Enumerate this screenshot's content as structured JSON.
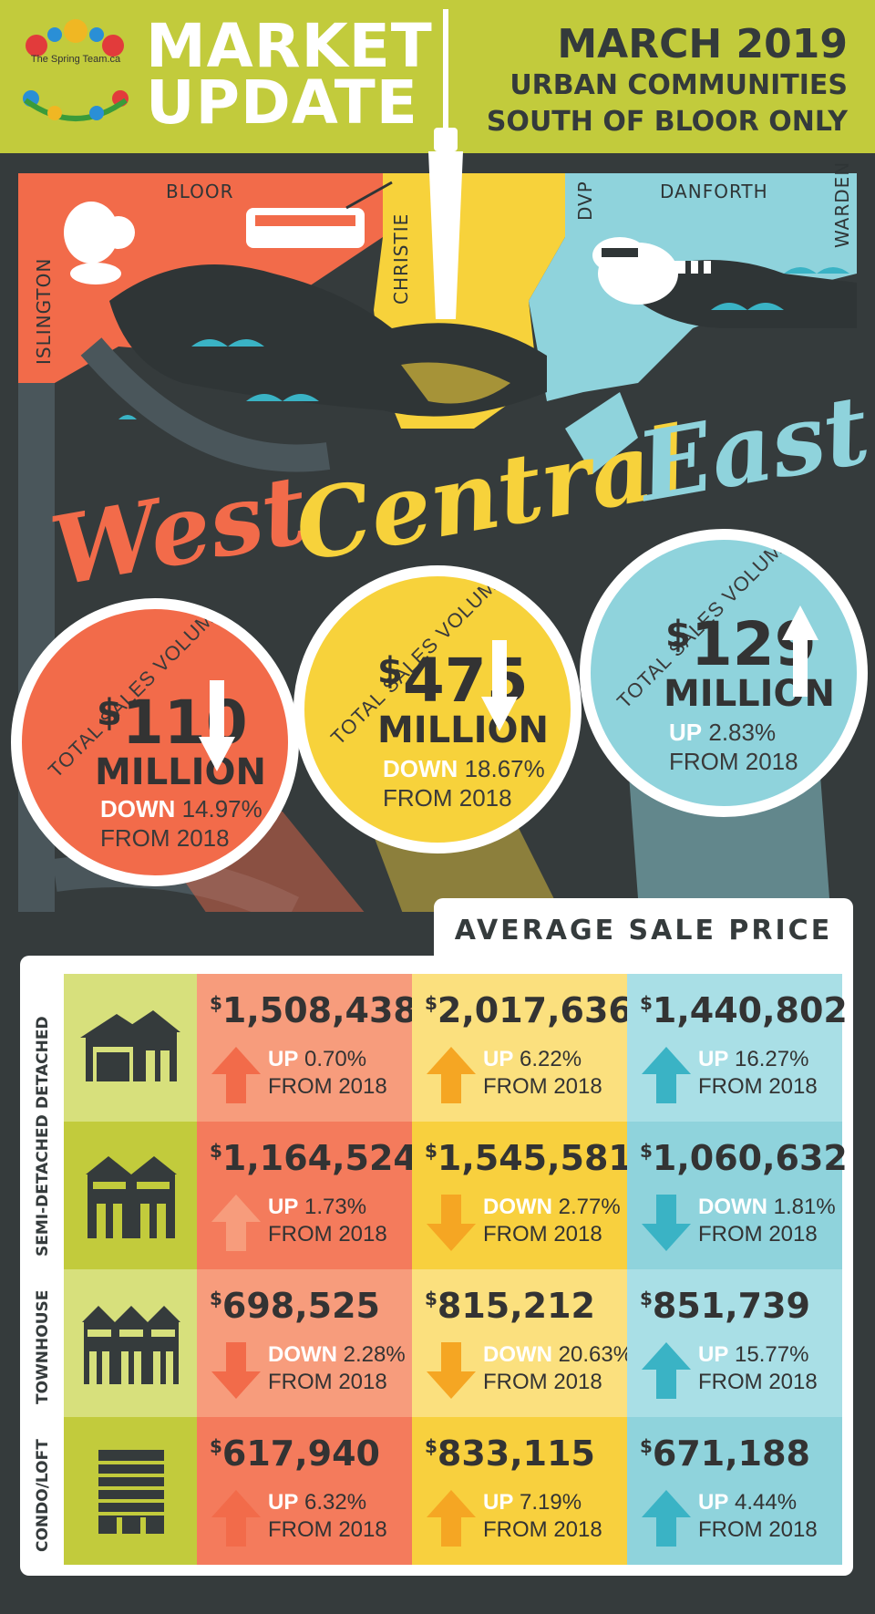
{
  "header": {
    "logo_text": "The Spring Team.ca",
    "title_line1": "MARKET",
    "title_line2": "UPDATE",
    "date": "MARCH 2019",
    "subtitle_line1": "URBAN COMMUNITIES",
    "subtitle_line2": "SOUTH OF BLOOR ONLY"
  },
  "map": {
    "streets": {
      "bloor": "BLOOR",
      "islington": "ISLINGTON",
      "christie": "CHRISTIE",
      "dvp": "DVP",
      "danforth": "DANFORTH",
      "warden": "WARDEN"
    },
    "colors": {
      "west": "#f26b4a",
      "central": "#f7d23b",
      "east": "#8fd3dc"
    }
  },
  "regions": [
    {
      "name": "West",
      "label": "TOTAL SALES VOLUME",
      "amount": "110",
      "unit": "MILLION",
      "direction": "DOWN",
      "change": "14.97%",
      "from": "FROM 2018"
    },
    {
      "name": "Central",
      "label": "TOTAL SALES VOLUME",
      "amount": "475",
      "unit": "MILLION",
      "direction": "DOWN",
      "change": "18.67%",
      "from": "FROM 2018"
    },
    {
      "name": "East",
      "label": "TOTAL SALES VOLUME",
      "amount": "129",
      "unit": "MILLION",
      "direction": "UP",
      "change": "2.83%",
      "from": "FROM 2018"
    }
  ],
  "average_sale_price": {
    "title": "AVERAGE SALE PRICE",
    "rows": [
      {
        "type": "DETACHED",
        "icon": "house-icon",
        "cells": [
          {
            "price": "1,508,438",
            "direction": "UP",
            "change": "0.70%",
            "from": "FROM 2018"
          },
          {
            "price": "2,017,636",
            "direction": "UP",
            "change": "6.22%",
            "from": "FROM 2018"
          },
          {
            "price": "1,440,802",
            "direction": "UP",
            "change": "16.27%",
            "from": "FROM 2018"
          }
        ]
      },
      {
        "type": "SEMI-DETACHED",
        "icon": "semi-detached-icon",
        "cells": [
          {
            "price": "1,164,524",
            "direction": "UP",
            "change": "1.73%",
            "from": "FROM 2018"
          },
          {
            "price": "1,545,581",
            "direction": "DOWN",
            "change": "2.77%",
            "from": "FROM 2018"
          },
          {
            "price": "1,060,632",
            "direction": "DOWN",
            "change": "1.81%",
            "from": "FROM 2018"
          }
        ]
      },
      {
        "type": "TOWNHOUSE",
        "icon": "townhouse-icon",
        "cells": [
          {
            "price": "698,525",
            "direction": "DOWN",
            "change": "2.28%",
            "from": "FROM 2018"
          },
          {
            "price": "815,212",
            "direction": "DOWN",
            "change": "20.63%",
            "from": "FROM 2018"
          },
          {
            "price": "851,739",
            "direction": "UP",
            "change": "15.77%",
            "from": "FROM 2018"
          }
        ]
      },
      {
        "type": "CONDO/LOFT",
        "icon": "condo-icon",
        "cells": [
          {
            "price": "617,940",
            "direction": "UP",
            "change": "6.32%",
            "from": "FROM 2018"
          },
          {
            "price": "833,115",
            "direction": "UP",
            "change": "7.19%",
            "from": "FROM 2018"
          },
          {
            "price": "671,188",
            "direction": "UP",
            "change": "4.44%",
            "from": "FROM 2018"
          }
        ]
      }
    ]
  }
}
